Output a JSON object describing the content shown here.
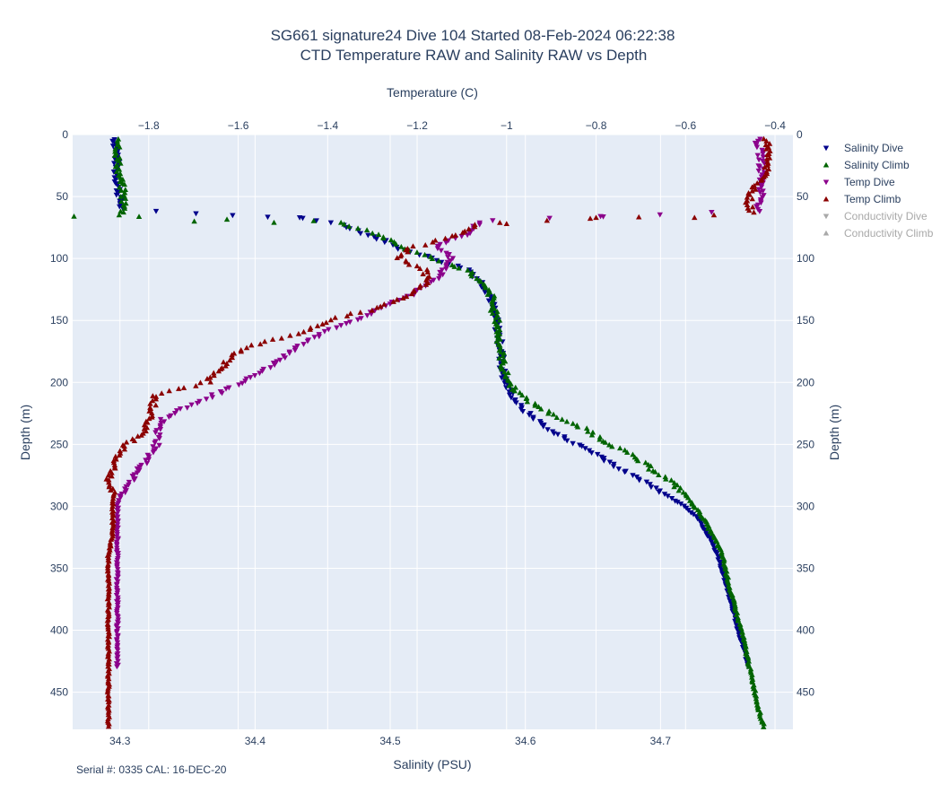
{
  "chart_data": {
    "type": "scatter",
    "title_line1": "SG661 signature24 Dive 104 Started 08-Feb-2024 06:22:38",
    "title_line2": "CTD Temperature RAW and Salinity RAW vs Depth",
    "x_top_label": "Temperature (C)",
    "x_bottom_label": "Salinity (PSU)",
    "y_label": "Depth (m)",
    "footer": "Serial #: 0335  CAL: 16-DEC-20",
    "y_range": [
      0,
      480
    ],
    "y_ticks": [
      0,
      50,
      100,
      150,
      200,
      250,
      300,
      350,
      400,
      450
    ],
    "temp_range": [
      -1.97,
      -0.36
    ],
    "temp_ticks": [
      -1.8,
      -1.6,
      -1.4,
      -1.2,
      -1,
      -0.8,
      -0.6,
      -0.4
    ],
    "temp_tick_labels": [
      "−1.8",
      "−1.6",
      "−1.4",
      "−1.2",
      "−1",
      "−0.8",
      "−0.6",
      "−0.4"
    ],
    "sal_range": [
      34.265,
      34.798
    ],
    "sal_ticks": [
      34.3,
      34.4,
      34.5,
      34.6,
      34.7
    ],
    "sal_tick_labels": [
      "34.3",
      "34.4",
      "34.5",
      "34.6",
      "34.7"
    ],
    "grid": true,
    "legend_position": "right",
    "colors": {
      "salinity_dive": "#00008b",
      "salinity_climb": "#006400",
      "temp_dive": "#8b008b",
      "temp_climb": "#8b0000",
      "conductivity": "#a9a9a9",
      "plot_bg": "#e5ecf6",
      "text": "#2a3f5f"
    },
    "series": [
      {
        "name": "Salinity Dive",
        "axis": "salinity",
        "marker": "triangle-down",
        "color": "#00008b",
        "profile": [
          [
            4,
            34.296
          ],
          [
            15,
            34.298
          ],
          [
            30,
            34.297
          ],
          [
            45,
            34.299
          ],
          [
            60,
            34.301
          ],
          [
            68,
            34.435
          ],
          [
            72,
            34.463
          ],
          [
            78,
            34.477
          ],
          [
            85,
            34.494
          ],
          [
            92,
            34.507
          ],
          [
            100,
            34.531
          ],
          [
            110,
            34.559
          ],
          [
            120,
            34.568
          ],
          [
            130,
            34.574
          ],
          [
            140,
            34.576
          ],
          [
            150,
            34.578
          ],
          [
            160,
            34.58
          ],
          [
            175,
            34.582
          ],
          [
            190,
            34.583
          ],
          [
            200,
            34.585
          ],
          [
            210,
            34.59
          ],
          [
            220,
            34.596
          ],
          [
            230,
            34.608
          ],
          [
            240,
            34.62
          ],
          [
            250,
            34.638
          ],
          [
            260,
            34.656
          ],
          [
            270,
            34.67
          ],
          [
            280,
            34.688
          ],
          [
            290,
            34.703
          ],
          [
            300,
            34.718
          ],
          [
            310,
            34.728
          ],
          [
            320,
            34.733
          ],
          [
            330,
            34.739
          ],
          [
            340,
            34.742
          ],
          [
            350,
            34.745
          ],
          [
            360,
            34.748
          ],
          [
            370,
            34.75
          ],
          [
            380,
            34.753
          ],
          [
            390,
            34.755
          ],
          [
            400,
            34.757
          ],
          [
            410,
            34.76
          ],
          [
            420,
            34.763
          ],
          [
            430,
            34.765
          ]
        ]
      },
      {
        "name": "Salinity Climb",
        "axis": "salinity",
        "marker": "triangle-up",
        "color": "#006400",
        "profile": [
          [
            4,
            34.3
          ],
          [
            15,
            34.298
          ],
          [
            30,
            34.299
          ],
          [
            45,
            34.302
          ],
          [
            55,
            34.303
          ],
          [
            63,
            34.302
          ],
          [
            66,
            34.3
          ],
          [
            70,
            34.459
          ],
          [
            75,
            34.473
          ],
          [
            80,
            34.491
          ],
          [
            86,
            34.499
          ],
          [
            92,
            34.511
          ],
          [
            100,
            34.533
          ],
          [
            110,
            34.558
          ],
          [
            120,
            34.567
          ],
          [
            130,
            34.575
          ],
          [
            140,
            34.576
          ],
          [
            150,
            34.579
          ],
          [
            160,
            34.58
          ],
          [
            175,
            34.582
          ],
          [
            190,
            34.584
          ],
          [
            200,
            34.588
          ],
          [
            210,
            34.596
          ],
          [
            220,
            34.61
          ],
          [
            230,
            34.628
          ],
          [
            240,
            34.648
          ],
          [
            250,
            34.663
          ],
          [
            260,
            34.68
          ],
          [
            270,
            34.694
          ],
          [
            280,
            34.708
          ],
          [
            290,
            34.718
          ],
          [
            300,
            34.725
          ],
          [
            310,
            34.732
          ],
          [
            320,
            34.737
          ],
          [
            330,
            34.742
          ],
          [
            340,
            34.746
          ],
          [
            350,
            34.748
          ],
          [
            360,
            34.75
          ],
          [
            370,
            34.752
          ],
          [
            380,
            34.755
          ],
          [
            390,
            34.757
          ],
          [
            400,
            34.76
          ],
          [
            410,
            34.762
          ],
          [
            420,
            34.764
          ],
          [
            430,
            34.766
          ],
          [
            440,
            34.768
          ],
          [
            450,
            34.77
          ],
          [
            460,
            34.772
          ],
          [
            470,
            34.774
          ],
          [
            478,
            34.777
          ]
        ]
      },
      {
        "name": "Temp Dive",
        "axis": "temperature",
        "marker": "triangle-down",
        "color": "#8b008b",
        "profile": [
          [
            4,
            -0.44
          ],
          [
            20,
            -0.43
          ],
          [
            40,
            -0.43
          ],
          [
            55,
            -0.43
          ],
          [
            62,
            -0.44
          ],
          [
            66,
            -0.76
          ],
          [
            70,
            -1.06
          ],
          [
            80,
            -1.08
          ],
          [
            90,
            -1.16
          ],
          [
            100,
            -1.12
          ],
          [
            110,
            -1.14
          ],
          [
            120,
            -1.17
          ],
          [
            130,
            -1.22
          ],
          [
            140,
            -1.28
          ],
          [
            150,
            -1.34
          ],
          [
            160,
            -1.41
          ],
          [
            170,
            -1.46
          ],
          [
            180,
            -1.5
          ],
          [
            190,
            -1.54
          ],
          [
            200,
            -1.59
          ],
          [
            210,
            -1.65
          ],
          [
            220,
            -1.72
          ],
          [
            230,
            -1.77
          ],
          [
            240,
            -1.78
          ],
          [
            250,
            -1.78
          ],
          [
            260,
            -1.8
          ],
          [
            270,
            -1.82
          ],
          [
            280,
            -1.84
          ],
          [
            290,
            -1.86
          ],
          [
            298,
            -1.87
          ],
          [
            310,
            -1.87
          ],
          [
            330,
            -1.87
          ],
          [
            350,
            -1.87
          ],
          [
            370,
            -1.87
          ],
          [
            390,
            -1.87
          ],
          [
            410,
            -1.87
          ],
          [
            430,
            -1.87
          ]
        ]
      },
      {
        "name": "Temp Climb",
        "axis": "temperature",
        "marker": "triangle-up",
        "color": "#8b0000",
        "profile": [
          [
            4,
            -0.42
          ],
          [
            15,
            -0.41
          ],
          [
            30,
            -0.42
          ],
          [
            45,
            -0.45
          ],
          [
            55,
            -0.46
          ],
          [
            64,
            -0.45
          ],
          [
            67,
            -0.76
          ],
          [
            72,
            -1.06
          ],
          [
            80,
            -1.1
          ],
          [
            86,
            -1.16
          ],
          [
            92,
            -1.22
          ],
          [
            100,
            -1.24
          ],
          [
            110,
            -1.18
          ],
          [
            120,
            -1.18
          ],
          [
            130,
            -1.22
          ],
          [
            140,
            -1.29
          ],
          [
            150,
            -1.4
          ],
          [
            160,
            -1.46
          ],
          [
            170,
            -1.57
          ],
          [
            180,
            -1.62
          ],
          [
            190,
            -1.64
          ],
          [
            200,
            -1.67
          ],
          [
            205,
            -1.73
          ],
          [
            210,
            -1.79
          ],
          [
            220,
            -1.79
          ],
          [
            230,
            -1.8
          ],
          [
            240,
            -1.81
          ],
          [
            250,
            -1.85
          ],
          [
            260,
            -1.87
          ],
          [
            270,
            -1.88
          ],
          [
            280,
            -1.89
          ],
          [
            290,
            -1.88
          ],
          [
            300,
            -1.88
          ],
          [
            320,
            -1.88
          ],
          [
            340,
            -1.89
          ],
          [
            360,
            -1.89
          ],
          [
            380,
            -1.89
          ],
          [
            400,
            -1.89
          ],
          [
            420,
            -1.89
          ],
          [
            440,
            -1.89
          ],
          [
            460,
            -1.89
          ],
          [
            478,
            -1.89
          ]
        ]
      },
      {
        "name": "Conductivity Dive",
        "axis": "none",
        "marker": "triangle-down",
        "color": "#a9a9a9",
        "visible": false,
        "profile": []
      },
      {
        "name": "Conductivity Climb",
        "axis": "none",
        "marker": "triangle-up",
        "color": "#a9a9a9",
        "visible": false,
        "profile": []
      }
    ],
    "outliers": [
      {
        "series": "Salinity Climb",
        "points": [
          [
            66,
            34.266
          ],
          [
            70,
            34.355
          ],
          [
            71,
            34.414
          ]
        ]
      },
      {
        "series": "Salinity Dive",
        "points": [
          [
            67,
            34.433
          ]
        ]
      },
      {
        "series": "Temp Climb",
        "points": [
          [
            67,
            -0.58
          ],
          [
            72,
            -1.0
          ],
          [
            67,
            -0.8
          ]
        ]
      },
      {
        "series": "Temp Dive",
        "points": [
          [
            66,
            -0.79
          ]
        ]
      }
    ]
  }
}
